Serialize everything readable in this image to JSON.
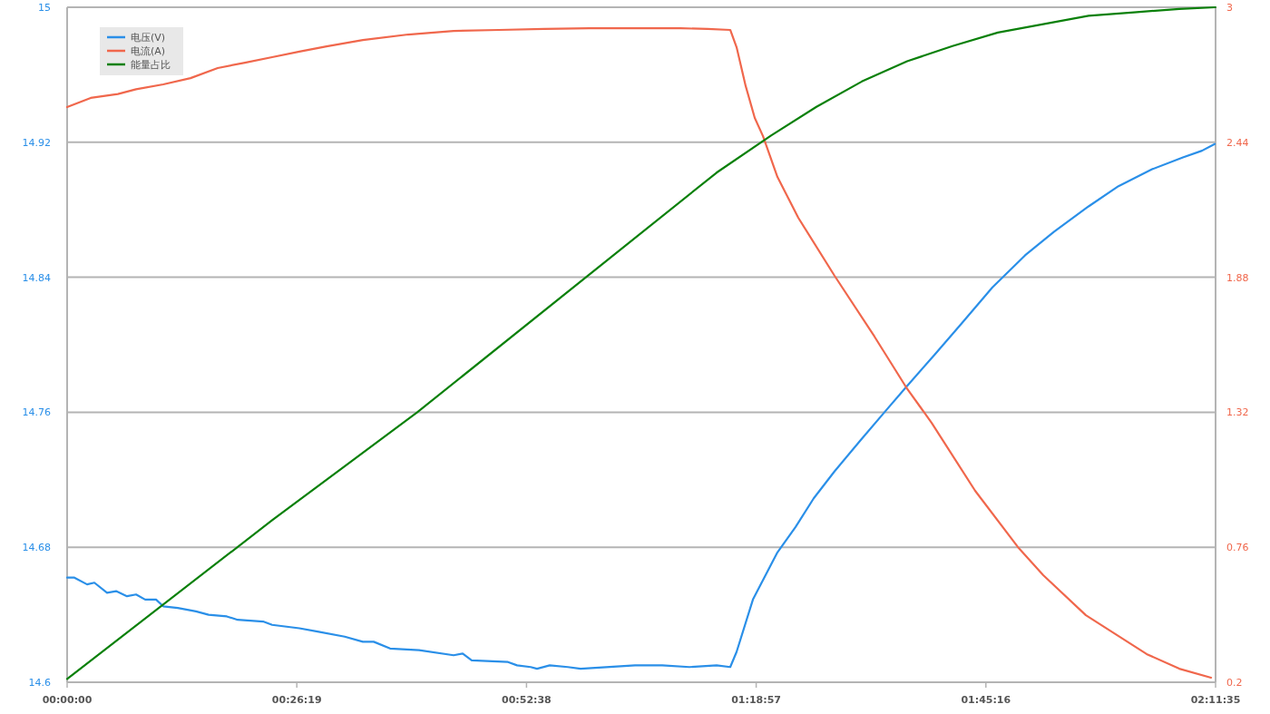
{
  "chart_data": {
    "type": "line",
    "xlim": [
      0,
      2.19306
    ],
    "xticks": [
      {
        "value": 0,
        "label": "00:00:00"
      },
      {
        "value": 0.43861,
        "label": "00:26:19"
      },
      {
        "value": 0.87722,
        "label": "00:52:38"
      },
      {
        "value": 1.31583,
        "label": "01:18:57"
      },
      {
        "value": 1.75444,
        "label": "01:45:16"
      },
      {
        "value": 2.19306,
        "label": "02:11:35"
      }
    ],
    "ylim": [
      14.6,
      15
    ],
    "yticks": [
      14.6,
      14.68,
      14.76,
      14.84,
      14.92,
      15
    ],
    "y2lim": [
      0.2,
      3
    ],
    "y2ticks": [
      0.2,
      0.76,
      1.32,
      1.88,
      2.44,
      3
    ],
    "grid": "y",
    "legend": "top left",
    "series": [
      {
        "name": "电压(V)",
        "color": "#2a8fe8",
        "x": [
          0,
          0.0139,
          0.0381,
          0.052,
          0.0762,
          0.0935,
          0.1143,
          0.1317,
          0.149,
          0.1698,
          0.1836,
          0.2113,
          0.246,
          0.2702,
          0.3049,
          0.3257,
          0.3742,
          0.3915,
          0.4435,
          0.4781,
          0.5301,
          0.5647,
          0.5855,
          0.6167,
          0.6721,
          0.738,
          0.7553,
          0.7726,
          0.8419,
          0.8592,
          0.8852,
          0.8973,
          0.9216,
          0.9562,
          0.9805,
          1.0844,
          1.1364,
          1.1884,
          1.2403,
          1.2663,
          1.2784,
          1.3096,
          1.3564,
          1.391,
          1.4257,
          1.4655,
          1.514,
          1.5608,
          1.6024,
          1.6561,
          1.7063,
          1.7669,
          1.8293,
          1.8847,
          1.9506,
          2.0077,
          2.0718,
          2.1307,
          2.1671,
          2.1914
        ],
        "values": [
          14.662,
          14.662,
          14.658,
          14.659,
          14.653,
          14.654,
          14.651,
          14.652,
          14.649,
          14.649,
          14.645,
          14.644,
          14.642,
          14.64,
          14.639,
          14.637,
          14.636,
          14.634,
          14.632,
          14.63,
          14.627,
          14.624,
          14.624,
          14.62,
          14.619,
          14.616,
          14.617,
          14.613,
          14.612,
          14.61,
          14.609,
          14.608,
          14.61,
          14.609,
          14.608,
          14.61,
          14.61,
          14.609,
          14.61,
          14.609,
          14.618,
          14.649,
          14.677,
          14.692,
          14.709,
          14.725,
          14.743,
          14.76,
          14.775,
          14.794,
          14.812,
          14.834,
          14.853,
          14.867,
          14.882,
          14.894,
          14.904,
          14.911,
          14.915,
          14.919
        ]
      },
      {
        "name": "电流(A)",
        "color": "#f0674c",
        "axis": "y2",
        "x": [
          0,
          0.045,
          0.097,
          0.1317,
          0.1836,
          0.2356,
          0.2876,
          0.3395,
          0.3915,
          0.4435,
          0.4954,
          0.5647,
          0.6513,
          0.738,
          0.8246,
          0.9112,
          0.9978,
          1.0844,
          1.171,
          1.223,
          1.2663,
          1.2784,
          1.2958,
          1.3131,
          1.3287,
          1.3564,
          1.3962,
          1.4655,
          1.5417,
          1.6024,
          1.6509,
          1.734,
          1.8155,
          1.864,
          1.9454,
          2.0614,
          2.1238,
          2.1845
        ],
        "values": [
          2.586,
          2.624,
          2.64,
          2.66,
          2.68,
          2.706,
          2.748,
          2.77,
          2.793,
          2.816,
          2.838,
          2.864,
          2.887,
          2.902,
          2.906,
          2.91,
          2.913,
          2.913,
          2.913,
          2.91,
          2.906,
          2.834,
          2.673,
          2.541,
          2.466,
          2.296,
          2.127,
          1.886,
          1.634,
          1.423,
          1.276,
          0.994,
          0.761,
          0.644,
          0.478,
          0.317,
          0.256,
          0.219
        ]
      },
      {
        "name": "能量占比",
        "color": "#0a800a",
        "x": [
          0,
          0.3915,
          0.6687,
          1.2403,
          1.3443,
          1.4309,
          1.5175,
          1.6041,
          1.6907,
          1.7773,
          1.864,
          1.9506,
          2.0372,
          2.1238,
          2.193
        ],
        "values": [
          14.602,
          14.696,
          14.76,
          14.902,
          14.924,
          14.941,
          14.956,
          14.968,
          14.977,
          14.985,
          14.99,
          14.995,
          14.997,
          14.999,
          15
        ]
      }
    ]
  }
}
